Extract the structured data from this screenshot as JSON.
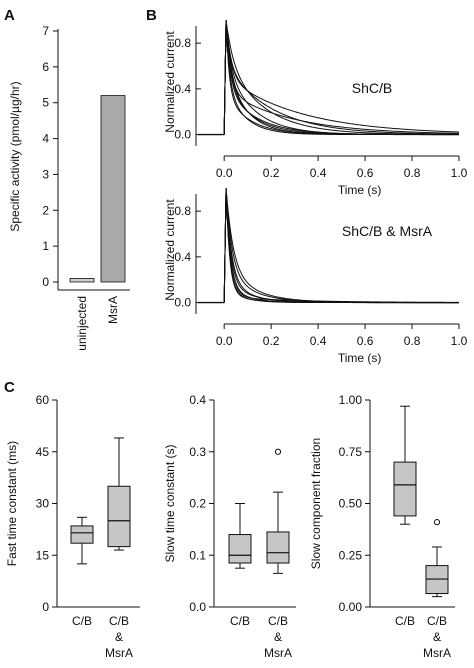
{
  "panels": {
    "a": "A",
    "b": "B",
    "c": "C"
  },
  "chart_data": [
    {
      "panel": "A",
      "type": "bar",
      "categories": [
        "uninjected",
        "MsrA"
      ],
      "values": [
        0.1,
        5.2
      ],
      "ylabel": "Specific activity (pmol/µg/hr)",
      "ylim": [
        0,
        7
      ],
      "yticks": [
        0,
        1,
        2,
        3,
        4,
        5,
        6,
        7
      ],
      "colors": {
        "uninjected": "#cfcfcf",
        "MsrA": "#a9a9a9"
      }
    },
    {
      "panel": "B-top",
      "type": "line",
      "annotation": "ShC/B",
      "xlabel": "Time (s)",
      "ylabel": "Normalized current",
      "xlim": [
        -0.12,
        1.0
      ],
      "ylim": [
        -0.1,
        0.95
      ],
      "xticks": [
        0.0,
        0.2,
        0.4,
        0.6,
        0.8,
        1.0
      ],
      "yticks": [
        0.0,
        0.4,
        0.8
      ],
      "xtick_labels": [
        "0.0",
        "0.2",
        "0.4",
        "0.6",
        "0.8",
        "1.0"
      ],
      "ytick_labels": [
        "0.0",
        "0.4",
        "0.8"
      ],
      "pulse_start": 0.0,
      "series": [
        {
          "fast_tau": 0.03,
          "slow_tau": 0.16,
          "slow_fraction": 0.65
        },
        {
          "fast_tau": 0.02,
          "slow_tau": 0.28,
          "slow_fraction": 0.38
        },
        {
          "fast_tau": 0.022,
          "slow_tau": 0.32,
          "slow_fraction": 0.5
        },
        {
          "fast_tau": 0.02,
          "slow_tau": 0.12,
          "slow_fraction": 0.58
        },
        {
          "fast_tau": 0.02,
          "slow_tau": 0.11,
          "slow_fraction": 0.45
        },
        {
          "fast_tau": 0.018,
          "slow_tau": 0.13,
          "slow_fraction": 0.4
        },
        {
          "fast_tau": 0.018,
          "slow_tau": 0.2,
          "slow_fraction": 0.6
        },
        {
          "fast_tau": 0.02,
          "slow_tau": 0.09,
          "slow_fraction": 0.55
        },
        {
          "fast_tau": 0.015,
          "slow_tau": 0.08,
          "slow_fraction": 0.42
        },
        {
          "fast_tau": 0.013,
          "slow_tau": 0.1,
          "slow_fraction": 0.35
        }
      ]
    },
    {
      "panel": "B-bottom",
      "type": "line",
      "annotation": "ShC/B & MsrA",
      "xlabel": "Time (s)",
      "ylabel": "Normalized current",
      "xlim": [
        -0.12,
        1.0
      ],
      "ylim": [
        -0.1,
        0.95
      ],
      "xticks": [
        0.0,
        0.2,
        0.4,
        0.6,
        0.8,
        1.0
      ],
      "yticks": [
        0.0,
        0.4,
        0.8
      ],
      "xtick_labels": [
        "0.0",
        "0.2",
        "0.4",
        "0.6",
        "0.8",
        "1.0"
      ],
      "ytick_labels": [
        "0.0",
        "0.4",
        "0.8"
      ],
      "pulse_start": 0.0,
      "series": [
        {
          "fast_tau": 0.018,
          "slow_tau": 0.08,
          "slow_fraction": 0.15
        },
        {
          "fast_tau": 0.02,
          "slow_tau": 0.1,
          "slow_fraction": 0.18
        },
        {
          "fast_tau": 0.025,
          "slow_tau": 0.11,
          "slow_fraction": 0.28
        },
        {
          "fast_tau": 0.022,
          "slow_tau": 0.09,
          "slow_fraction": 0.22
        },
        {
          "fast_tau": 0.016,
          "slow_tau": 0.07,
          "slow_fraction": 0.12
        },
        {
          "fast_tau": 0.03,
          "slow_tau": 0.12,
          "slow_fraction": 0.3
        },
        {
          "fast_tau": 0.02,
          "slow_tau": 0.3,
          "slow_fraction": 0.05
        },
        {
          "fast_tau": 0.015,
          "slow_tau": 0.08,
          "slow_fraction": 0.1
        }
      ]
    },
    {
      "panel": "C-fast",
      "type": "box",
      "ylabel": "Fast time constant (ms)",
      "ylim": [
        0,
        60
      ],
      "yticks": [
        0,
        15,
        30,
        45,
        60
      ],
      "categories": [
        "C/B",
        "C/B & MsrA"
      ],
      "boxes": [
        {
          "whisker_low": 12.5,
          "q1": 18.5,
          "median": 21.5,
          "q3": 23.5,
          "whisker_high": 26,
          "outliers": []
        },
        {
          "whisker_low": 16.5,
          "q1": 17.5,
          "median": 25,
          "q3": 35,
          "whisker_high": 49,
          "outliers": []
        }
      ]
    },
    {
      "panel": "C-slow",
      "type": "box",
      "ylabel": "Slow time constant (s)",
      "ylim": [
        0,
        0.4
      ],
      "yticks": [
        0.0,
        0.1,
        0.2,
        0.3,
        0.4
      ],
      "categories": [
        "C/B",
        "C/B & MsrA"
      ],
      "boxes": [
        {
          "whisker_low": 0.075,
          "q1": 0.085,
          "median": 0.1,
          "q3": 0.14,
          "whisker_high": 0.2,
          "outliers": []
        },
        {
          "whisker_low": 0.065,
          "q1": 0.085,
          "median": 0.105,
          "q3": 0.145,
          "whisker_high": 0.222,
          "outliers": [
            0.3
          ]
        }
      ]
    },
    {
      "panel": "C-fraction",
      "type": "box",
      "ylabel": "Slow component fraction",
      "ylim": [
        0,
        1.0
      ],
      "yticks": [
        0.0,
        0.25,
        0.5,
        0.75,
        1.0
      ],
      "categories": [
        "C/B",
        "C/B & MsrA"
      ],
      "boxes": [
        {
          "whisker_low": 0.4,
          "q1": 0.44,
          "median": 0.59,
          "q3": 0.7,
          "whisker_high": 0.97,
          "outliers": []
        },
        {
          "whisker_low": 0.05,
          "q1": 0.065,
          "median": 0.135,
          "q3": 0.2,
          "whisker_high": 0.29,
          "outliers": [
            0.41
          ]
        }
      ]
    }
  ],
  "labels": {
    "a_xticks": [
      "uninjected",
      "MsrA"
    ],
    "c_xtick_cb": "C/B",
    "c_xtick_ms": [
      "C/B",
      "&",
      "MsrA"
    ]
  }
}
